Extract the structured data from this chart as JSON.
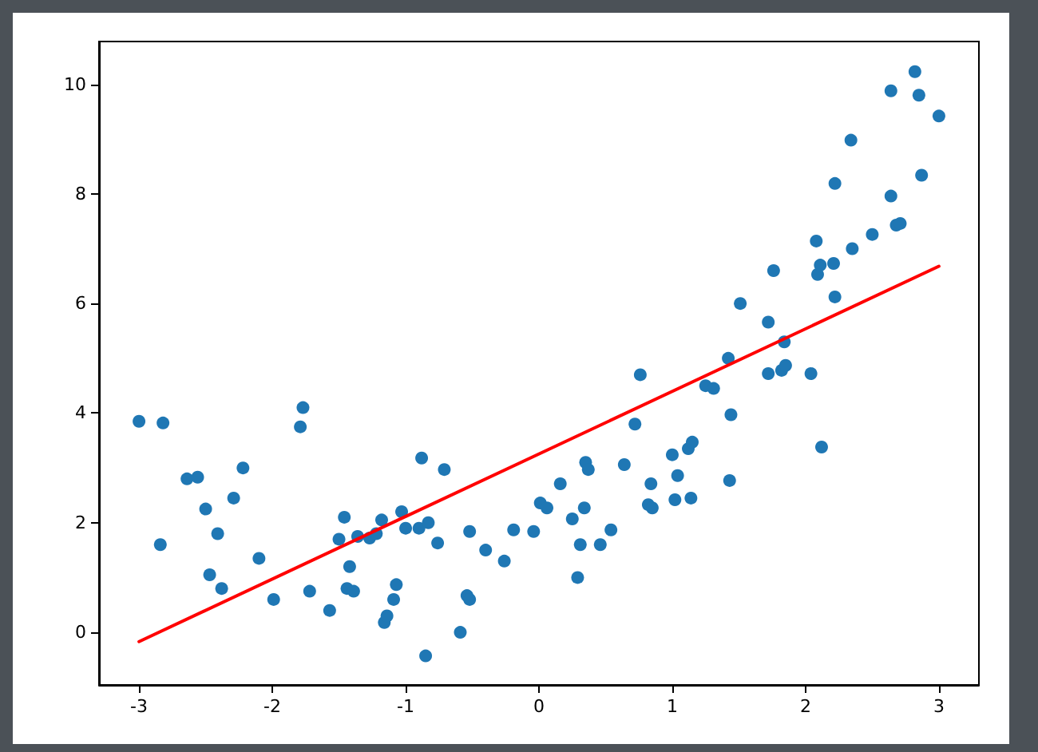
{
  "chart_data": {
    "type": "scatter",
    "xlim": [
      -3.3,
      3.3
    ],
    "ylim": [
      -0.96,
      10.78
    ],
    "xticks": [
      -3,
      -2,
      -1,
      0,
      1,
      2,
      3
    ],
    "yticks": [
      0,
      2,
      4,
      6,
      8,
      10
    ],
    "grid": false,
    "marker": "circle",
    "series": [
      {
        "color": "#1f77b4",
        "x": [
          -3.0,
          -2.82,
          -2.84,
          -2.64,
          -2.56,
          -2.5,
          -2.47,
          -2.41,
          -2.38,
          -2.29,
          -2.22,
          -2.1,
          -1.99,
          -1.79,
          -1.77,
          -1.72,
          -1.57,
          -1.5,
          -1.46,
          -1.44,
          -1.42,
          -1.39,
          -1.36,
          -1.27,
          -1.22,
          -1.18,
          -1.16,
          -1.14,
          -1.09,
          -1.07,
          -1.03,
          -1.0,
          -0.9,
          -0.88,
          -0.85,
          -0.83,
          -0.76,
          -0.71,
          -0.59,
          -0.54,
          -0.52,
          -0.52,
          -0.4,
          -0.26,
          -0.19,
          -0.04,
          0.01,
          0.06,
          0.16,
          0.25,
          0.29,
          0.31,
          0.34,
          0.35,
          0.37,
          0.46,
          0.54,
          0.64,
          0.72,
          0.76,
          0.82,
          0.85,
          0.84,
          1.0,
          1.04,
          1.02,
          1.12,
          1.15,
          1.14,
          1.25,
          1.31,
          1.42,
          1.44,
          1.43,
          1.51,
          1.72,
          1.72,
          1.76,
          1.82,
          1.85,
          1.84,
          2.04,
          2.08,
          2.09,
          2.11,
          2.12,
          2.22,
          2.21,
          2.22,
          2.34,
          2.35,
          2.5,
          2.64,
          2.64,
          2.68,
          2.71,
          2.82,
          2.85,
          2.87,
          3.0
        ],
        "values": [
          3.85,
          3.82,
          1.6,
          2.8,
          2.83,
          2.25,
          1.05,
          1.8,
          0.8,
          2.45,
          3.0,
          1.35,
          0.6,
          3.75,
          4.1,
          0.75,
          0.4,
          1.7,
          2.1,
          0.8,
          1.2,
          0.75,
          1.75,
          1.72,
          1.8,
          2.05,
          0.18,
          0.3,
          0.6,
          0.87,
          2.2,
          1.9,
          1.9,
          3.18,
          -0.43,
          2.0,
          1.63,
          2.97,
          0.0,
          0.67,
          0.6,
          1.84,
          1.5,
          1.3,
          1.87,
          1.84,
          2.36,
          2.27,
          2.71,
          2.07,
          1.0,
          1.6,
          2.27,
          3.1,
          2.97,
          1.6,
          1.87,
          3.06,
          3.8,
          4.7,
          2.33,
          2.27,
          2.71,
          3.24,
          2.86,
          2.42,
          3.35,
          3.47,
          2.45,
          4.5,
          4.45,
          5.0,
          3.97,
          2.77,
          6.0,
          5.66,
          4.72,
          6.6,
          4.78,
          4.87,
          5.3,
          4.72,
          7.14,
          6.53,
          6.7,
          3.38,
          6.12,
          6.73,
          8.19,
          8.98,
          7.0,
          7.26,
          7.96,
          9.88,
          7.43,
          7.46,
          10.23,
          9.8,
          8.34,
          9.42
        ]
      },
      {
        "type": "line",
        "color": "#ff0000",
        "marker": "none",
        "x": [
          -3,
          3
        ],
        "values": [
          -0.17,
          6.68
        ]
      }
    ]
  }
}
